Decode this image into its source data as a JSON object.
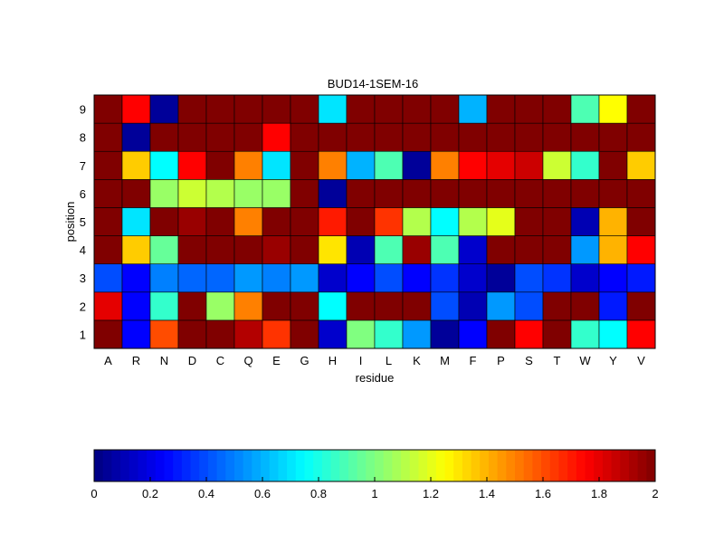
{
  "chart_data": {
    "type": "heatmap",
    "title": "BUD14-1SEM-16",
    "xlabel": "residue",
    "ylabel": "position",
    "x_categories": [
      "A",
      "R",
      "N",
      "D",
      "C",
      "Q",
      "E",
      "G",
      "H",
      "I",
      "L",
      "K",
      "M",
      "F",
      "P",
      "S",
      "T",
      "W",
      "Y",
      "V"
    ],
    "y_categories": [
      "1",
      "2",
      "3",
      "4",
      "5",
      "6",
      "7",
      "8",
      "9"
    ],
    "value_range": [
      0,
      2
    ],
    "colormap": "jet",
    "colorbar": {
      "orientation": "horizontal",
      "placement": "bottom",
      "ticks": [
        "0",
        "0.2",
        "0.4",
        "0.6",
        "0.8",
        "1",
        "1.2",
        "1.4",
        "1.6",
        "1.8",
        "2"
      ]
    },
    "values": [
      [
        2.0,
        0.25,
        1.6,
        2.0,
        2.0,
        1.9,
        1.65,
        2.0,
        0.15,
        1.0,
        0.85,
        0.55,
        0.05,
        0.25,
        2.0,
        1.75,
        2.0,
        0.85,
        0.75,
        1.75
      ],
      [
        1.8,
        0.25,
        0.85,
        2.0,
        1.05,
        1.5,
        2.0,
        2.0,
        0.75,
        2.0,
        2.0,
        2.0,
        0.4,
        0.1,
        0.55,
        0.4,
        2.0,
        2.0,
        0.3,
        2.0
      ],
      [
        0.4,
        0.25,
        0.5,
        0.45,
        0.45,
        0.55,
        0.5,
        0.55,
        0.15,
        0.25,
        0.4,
        0.25,
        0.35,
        0.15,
        0.05,
        0.4,
        0.35,
        0.15,
        0.25,
        0.3
      ],
      [
        2.0,
        1.35,
        0.95,
        2.0,
        2.0,
        2.0,
        1.95,
        2.0,
        1.3,
        0.1,
        0.9,
        1.95,
        0.9,
        0.15,
        2.0,
        2.0,
        2.0,
        0.55,
        1.4,
        1.75
      ],
      [
        2.0,
        0.7,
        2.0,
        1.95,
        2.0,
        1.5,
        2.0,
        2.0,
        1.7,
        2.0,
        1.65,
        1.1,
        0.75,
        1.1,
        1.2,
        2.0,
        2.0,
        0.1,
        1.4,
        2.0
      ],
      [
        2.0,
        2.0,
        1.05,
        1.15,
        1.1,
        1.05,
        1.05,
        2.0,
        0.05,
        2.0,
        2.0,
        2.0,
        2.0,
        2.0,
        2.0,
        2.0,
        2.0,
        2.0,
        2.0,
        2.0
      ],
      [
        2.0,
        1.35,
        0.75,
        1.75,
        2.0,
        1.5,
        0.7,
        2.0,
        1.5,
        0.6,
        0.9,
        0.05,
        1.5,
        1.75,
        1.8,
        1.85,
        1.15,
        0.85,
        2.0,
        1.35
      ],
      [
        2.0,
        0.05,
        2.0,
        2.0,
        2.0,
        2.0,
        1.75,
        2.0,
        2.0,
        2.0,
        2.0,
        2.0,
        2.0,
        2.0,
        2.0,
        2.0,
        2.0,
        2.0,
        2.0,
        2.0
      ],
      [
        2.0,
        1.75,
        0.05,
        2.0,
        2.0,
        2.0,
        2.0,
        2.0,
        0.7,
        2.0,
        2.0,
        2.0,
        2.0,
        0.6,
        2.0,
        2.0,
        2.0,
        0.9,
        1.25,
        2.0
      ]
    ]
  }
}
